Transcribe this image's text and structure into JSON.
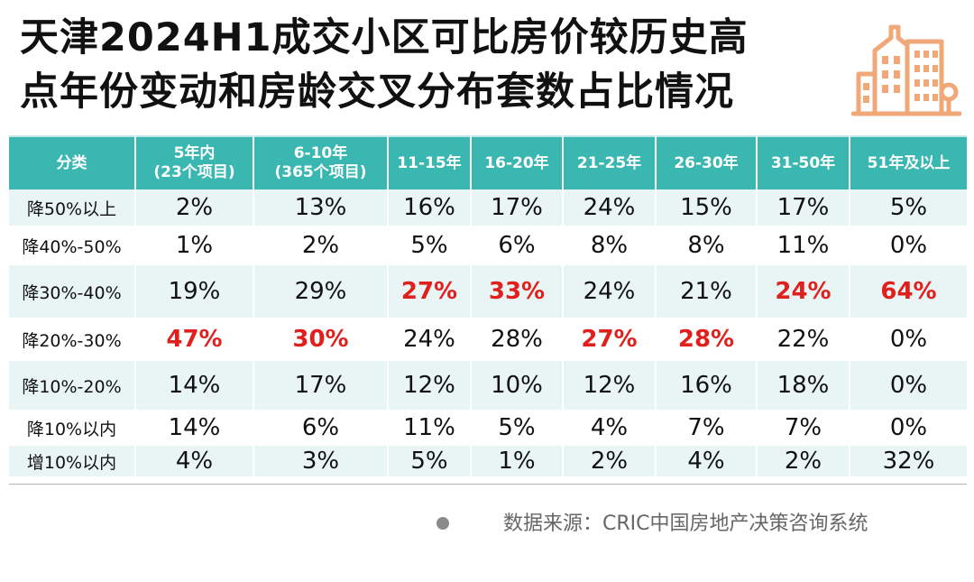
{
  "title": {
    "line1": "天津2024H1成交小区可比房价较历史高",
    "line2": "点年份变动和房龄交叉分布套数占比情况"
  },
  "logo_icon": "city-buildings-icon",
  "colors": {
    "header": "#3bb7b1",
    "row_alt": "#e9f4f4",
    "highlight": "#e0201c",
    "logo": "#f0a878"
  },
  "chart_data": {
    "type": "table",
    "columns": [
      {
        "label": "分类",
        "sub": ""
      },
      {
        "label": "5年内",
        "sub": "(23个项目)"
      },
      {
        "label": "6-10年",
        "sub": "(365个项目)"
      },
      {
        "label": "11-15年",
        "sub": ""
      },
      {
        "label": "16-20年",
        "sub": ""
      },
      {
        "label": "21-25年",
        "sub": ""
      },
      {
        "label": "26-30年",
        "sub": ""
      },
      {
        "label": "31-50年",
        "sub": ""
      },
      {
        "label": "51年及以上",
        "sub": ""
      }
    ],
    "rows": [
      {
        "label": "降50%以上",
        "values": [
          "2%",
          "13%",
          "16%",
          "17%",
          "24%",
          "15%",
          "17%",
          "5%"
        ],
        "highlight": []
      },
      {
        "label": "降40%-50%",
        "values": [
          "1%",
          "2%",
          "5%",
          "6%",
          "8%",
          "8%",
          "11%",
          "0%"
        ],
        "highlight": []
      },
      {
        "label": "降30%-40%",
        "values": [
          "19%",
          "29%",
          "27%",
          "33%",
          "24%",
          "21%",
          "24%",
          "64%"
        ],
        "highlight": [
          2,
          3,
          6,
          7
        ]
      },
      {
        "label": "降20%-30%",
        "values": [
          "47%",
          "30%",
          "24%",
          "28%",
          "27%",
          "28%",
          "22%",
          "0%"
        ],
        "highlight": [
          0,
          1,
          4,
          5
        ]
      },
      {
        "label": "降10%-20%",
        "values": [
          "14%",
          "17%",
          "12%",
          "10%",
          "12%",
          "16%",
          "18%",
          "0%"
        ],
        "highlight": []
      },
      {
        "label": "降10%以内",
        "values": [
          "14%",
          "6%",
          "11%",
          "5%",
          "4%",
          "7%",
          "7%",
          "0%"
        ],
        "highlight": []
      },
      {
        "label": "增10%以内",
        "values": [
          "4%",
          "3%",
          "5%",
          "1%",
          "2%",
          "4%",
          "2%",
          "32%"
        ],
        "highlight": []
      }
    ]
  },
  "footer": {
    "source": "数据来源：CRIC中国房地产决策咨询系统"
  }
}
